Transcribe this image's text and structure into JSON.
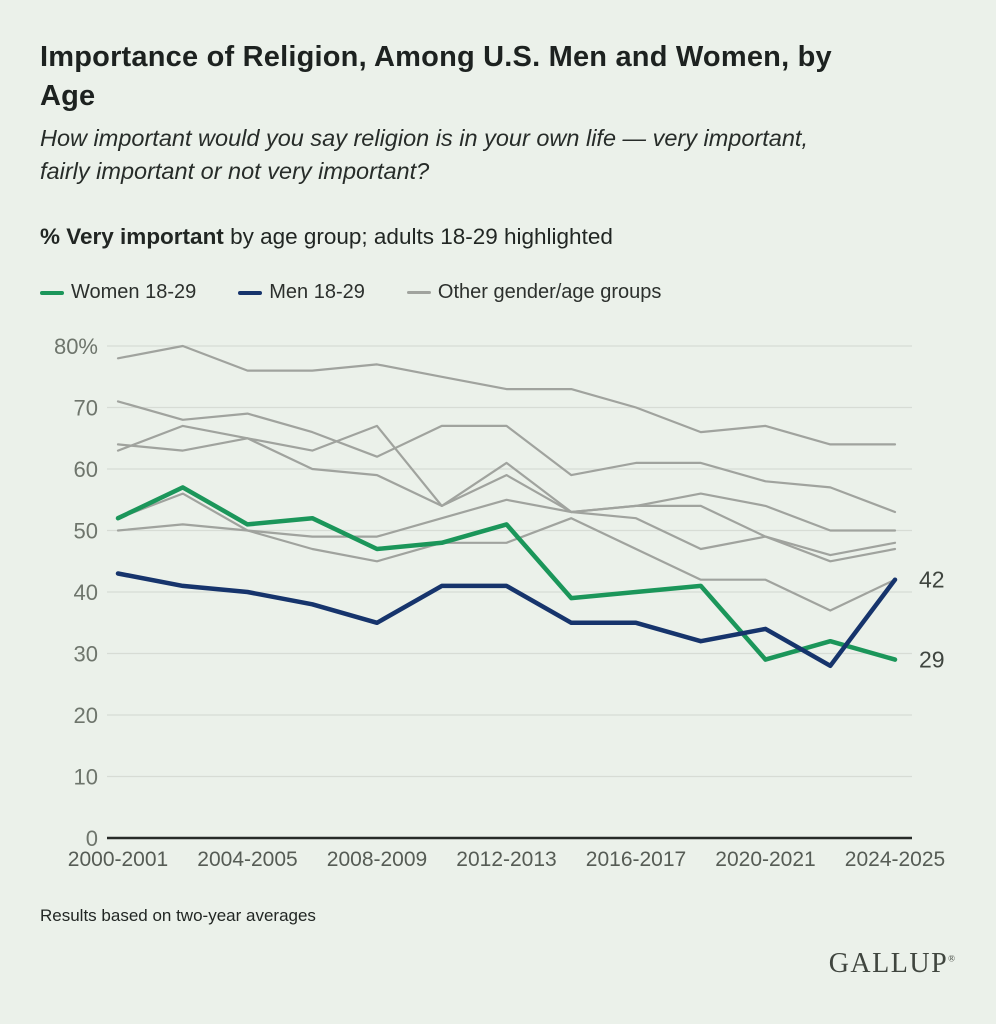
{
  "header": {
    "title_lines": [
      "Importance of Religion, Among U.S. Men and Women, by",
      "Age"
    ],
    "subtitle_lines": [
      "How important would you say religion is in your own life — very important,",
      "fairly important or not very important?"
    ],
    "measure_bold": "% Very important",
    "measure_rest": " by age group; adults 18-29 highlighted"
  },
  "legend": [
    {
      "label": "Women 18-29",
      "color": "#1b965a",
      "style": "thick"
    },
    {
      "label": "Men 18-29",
      "color": "#16346c",
      "style": "thick"
    },
    {
      "label": "Other gender/age groups",
      "color": "#a0a39e",
      "style": "thin"
    }
  ],
  "chart_data": {
    "type": "line",
    "categories": [
      "2000-2001",
      "2002-2003",
      "2004-2005",
      "2006-2007",
      "2008-2009",
      "2010-2011",
      "2012-2013",
      "2014-2015",
      "2016-2017",
      "2018-2019",
      "2020-2021",
      "2022-2023",
      "2024-2025"
    ],
    "x_axis_labels": [
      "2000-2001",
      "2004-2005",
      "2008-2009",
      "2012-2013",
      "2016-2017",
      "2020-2021",
      "2024-2025"
    ],
    "x_axis_label_indices": [
      0,
      2,
      4,
      6,
      8,
      10,
      12
    ],
    "ylim": [
      0,
      80
    ],
    "yticks": [
      {
        "v": 80,
        "label": "80%"
      },
      {
        "v": 70,
        "label": "70"
      },
      {
        "v": 60,
        "label": "60"
      },
      {
        "v": 50,
        "label": "50"
      },
      {
        "v": 40,
        "label": "40"
      },
      {
        "v": 30,
        "label": "30"
      },
      {
        "v": 20,
        "label": "20"
      },
      {
        "v": 10,
        "label": "10"
      },
      {
        "v": 0,
        "label": "0"
      }
    ],
    "grid": true,
    "legend_position": "top",
    "series": [
      {
        "name": "other-1",
        "group": "Other gender/age groups",
        "color": "#a0a39e",
        "width": 2.2,
        "values": [
          78,
          80,
          76,
          76,
          77,
          75,
          73,
          73,
          70,
          66,
          67,
          64,
          64
        ]
      },
      {
        "name": "other-2",
        "group": "Other gender/age groups",
        "color": "#a0a39e",
        "width": 2.2,
        "values": [
          71,
          68,
          69,
          66,
          62,
          67,
          67,
          59,
          61,
          61,
          58,
          57,
          53
        ]
      },
      {
        "name": "other-3",
        "group": "Other gender/age groups",
        "color": "#a0a39e",
        "width": 2.2,
        "values": [
          64,
          63,
          65,
          63,
          67,
          54,
          61,
          53,
          54,
          56,
          54,
          50,
          50
        ]
      },
      {
        "name": "other-4",
        "group": "Other gender/age groups",
        "color": "#a0a39e",
        "width": 2.2,
        "values": [
          63,
          67,
          65,
          60,
          59,
          54,
          59,
          53,
          52,
          47,
          49,
          45,
          47
        ]
      },
      {
        "name": "other-5",
        "group": "Other gender/age groups",
        "color": "#a0a39e",
        "width": 2.2,
        "values": [
          50,
          51,
          50,
          49,
          49,
          52,
          55,
          53,
          54,
          54,
          49,
          46,
          48
        ]
      },
      {
        "name": "other-6",
        "group": "Other gender/age groups",
        "color": "#a0a39e",
        "width": 2.2,
        "values": [
          52,
          56,
          50,
          47,
          45,
          48,
          48,
          52,
          47,
          42,
          42,
          37,
          42
        ]
      },
      {
        "name": "Women 18-29",
        "group": "highlight",
        "color": "#1b965a",
        "width": 4.5,
        "values": [
          52,
          57,
          51,
          52,
          47,
          48,
          51,
          39,
          40,
          41,
          29,
          32,
          29
        ],
        "end_label": "29"
      },
      {
        "name": "Men 18-29",
        "group": "highlight",
        "color": "#16346c",
        "width": 4.5,
        "values": [
          43,
          41,
          40,
          38,
          35,
          41,
          41,
          35,
          35,
          32,
          34,
          28,
          42
        ],
        "end_label": "42"
      }
    ],
    "end_labels": [
      "42",
      "29"
    ],
    "colors": {
      "grid": "#d7dcd5",
      "zero_axis": "#272b28",
      "tick_label": "#6e756c",
      "x_label": "#565c55",
      "end_label": "#3f453f"
    }
  },
  "footnote": "Results based on two-year averages",
  "brand": {
    "wordmark": "GALLUP",
    "mark": "®"
  }
}
